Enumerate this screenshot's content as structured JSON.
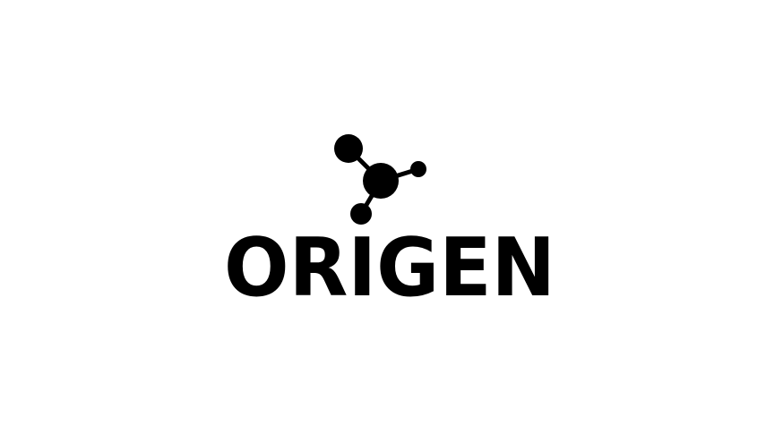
{
  "logo": {
    "wordmark": "ORIGEN"
  }
}
